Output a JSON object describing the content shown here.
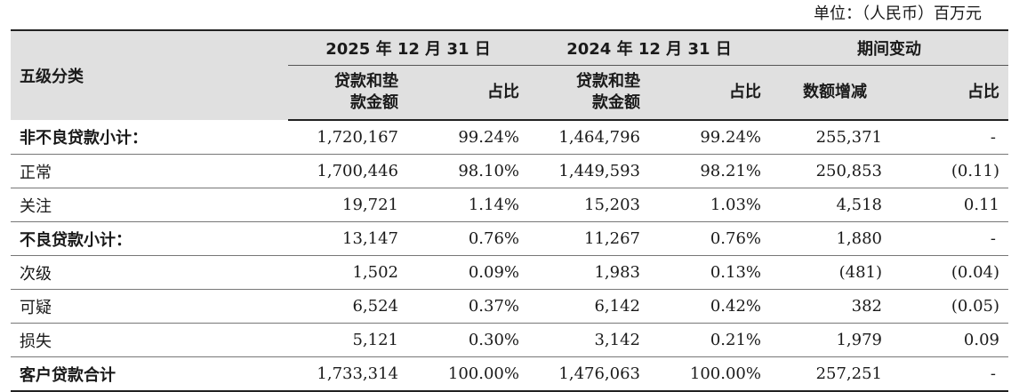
{
  "unit_label": "单位：（人民币）百万元",
  "header": {
    "category": "五级分类",
    "group_2025": "2025 年 12 月 31 日",
    "group_2024": "2024 年 12 月 31 日",
    "group_change": "期间变动",
    "amount_line1": "贷款和垫",
    "amount_line2": "款金额",
    "ratio": "占比",
    "change_amount": "数额增减",
    "change_ratio": "占比"
  },
  "rows": [
    {
      "name": "非不良贷款小计：",
      "subtotal": true,
      "a2025": "1,720,167",
      "r2025": "99.24%",
      "a2024": "1,464,796",
      "r2024": "99.24%",
      "chg": "255,371",
      "chg_ratio": "-"
    },
    {
      "name": "正常",
      "subtotal": false,
      "a2025": "1,700,446",
      "r2025": "98.10%",
      "a2024": "1,449,593",
      "r2024": "98.21%",
      "chg": "250,853",
      "chg_ratio": "(0.11)"
    },
    {
      "name": "关注",
      "subtotal": false,
      "a2025": "19,721",
      "r2025": "1.14%",
      "a2024": "15,203",
      "r2024": "1.03%",
      "chg": "4,518",
      "chg_ratio": "0.11"
    },
    {
      "name": "不良贷款小计：",
      "subtotal": true,
      "a2025": "13,147",
      "r2025": "0.76%",
      "a2024": "11,267",
      "r2024": "0.76%",
      "chg": "1,880",
      "chg_ratio": "-"
    },
    {
      "name": "次级",
      "subtotal": false,
      "a2025": "1,502",
      "r2025": "0.09%",
      "a2024": "1,983",
      "r2024": "0.13%",
      "chg": "(481)",
      "chg_ratio": "(0.04)"
    },
    {
      "name": "可疑",
      "subtotal": false,
      "a2025": "6,524",
      "r2025": "0.37%",
      "a2024": "6,142",
      "r2024": "0.42%",
      "chg": "382",
      "chg_ratio": "(0.05)"
    },
    {
      "name": "损失",
      "subtotal": false,
      "a2025": "5,121",
      "r2025": "0.30%",
      "a2024": "3,142",
      "r2024": "0.21%",
      "chg": "1,979",
      "chg_ratio": "0.09"
    },
    {
      "name": "客户贷款合计",
      "subtotal": true,
      "a2025": "1,733,314",
      "r2025": "100.00%",
      "a2024": "1,476,063",
      "r2024": "100.00%",
      "chg": "257,251",
      "chg_ratio": "-"
    }
  ]
}
